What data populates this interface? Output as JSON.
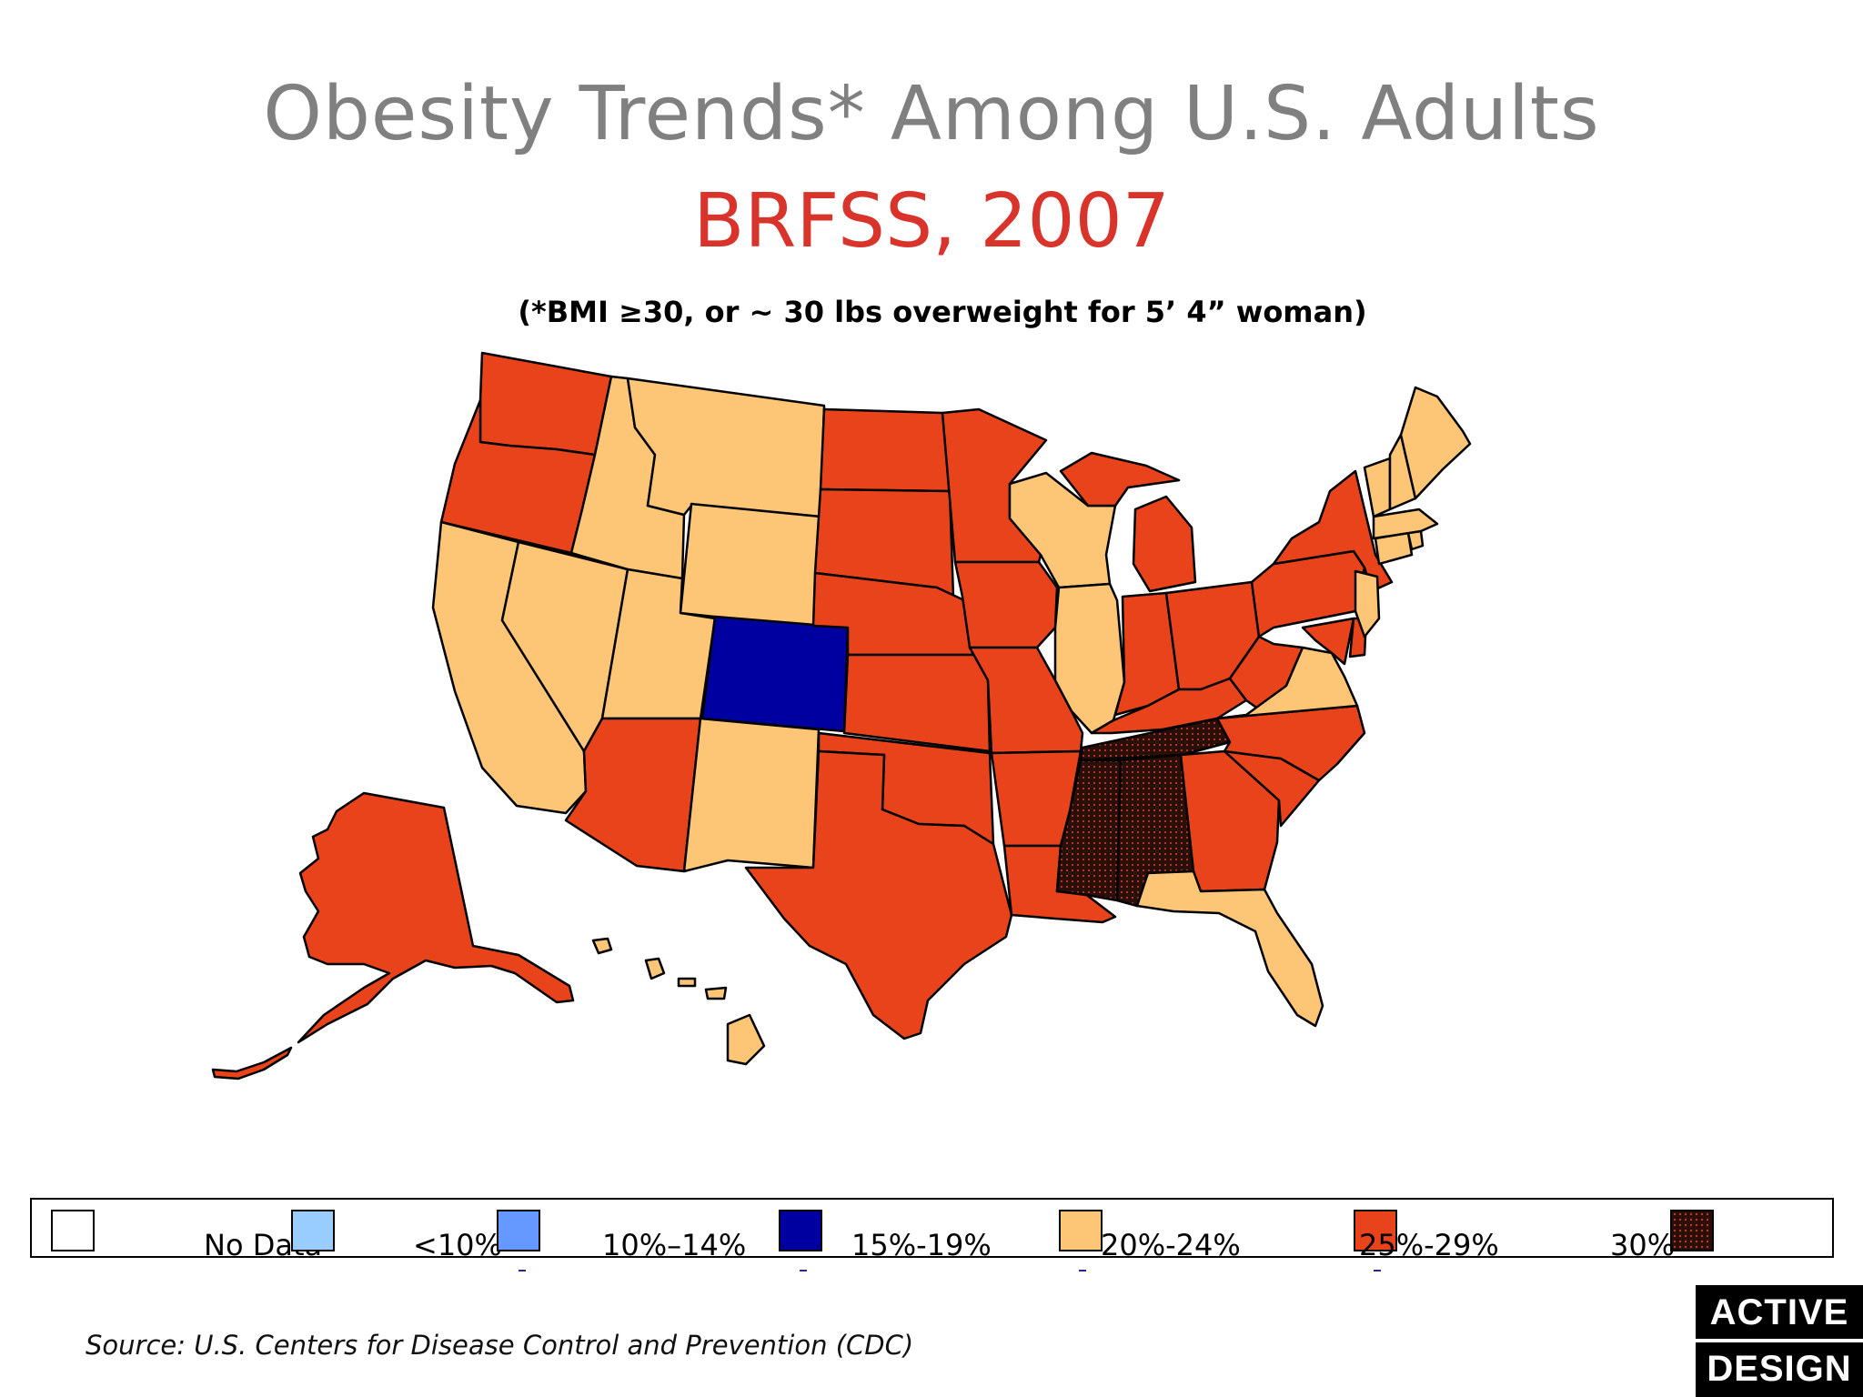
{
  "title": "Obesity Trends* Among U.S. Adults",
  "subtitle": "BRFSS, 2007",
  "note": "(*BMI ≥30, or ~ 30 lbs overweight for 5’ 4” woman)",
  "source": "Source: U.S. Centers for Disease Control and Prevention (CDC)",
  "logo": {
    "line1": "ACTIVE",
    "line2": "DESIGN"
  },
  "colors": {
    "no_data": "#ffffff",
    "lt10": "#99ccff",
    "10_14": "#6699ff",
    "15_19": "#0000a0",
    "20_24": "#fdc676",
    "25_29": "#e8431a",
    "30_plus": "#2a0e08",
    "title": "#808080",
    "subtitle": "#d9342b"
  },
  "legend": [
    {
      "label": "No Data",
      "color_key": "no_data"
    },
    {
      "label": "<10%",
      "color_key": "lt10"
    },
    {
      "label": "10%–14%",
      "color_key": "10_14"
    },
    {
      "label": "15%-19%",
      "color_key": "15_19"
    },
    {
      "label": "20%-24%",
      "color_key": "20_24"
    },
    {
      "label": "25%-29%",
      "color_key": "25_29"
    },
    {
      "label": "30%",
      "color_key": "30_plus"
    }
  ],
  "states": {
    "CO": "15_19",
    "WA": "25_29",
    "OR": "25_29",
    "AZ": "25_29",
    "ND": "25_29",
    "SD": "25_29",
    "NE": "25_29",
    "KS": "25_29",
    "OK": "25_29",
    "TX": "25_29",
    "MN": "25_29",
    "IA": "25_29",
    "MO": "25_29",
    "AR": "25_29",
    "LA": "25_29",
    "MI": "25_29",
    "IN": "25_29",
    "OH": "25_29",
    "KY": "25_29",
    "WV": "25_29",
    "PA": "25_29",
    "NY": "25_29",
    "NC": "25_29",
    "SC": "25_29",
    "GA": "25_29",
    "AK": "25_29",
    "MD": "25_29",
    "DE": "25_29",
    "CA": "20_24",
    "NV": "20_24",
    "ID": "20_24",
    "MT": "20_24",
    "WY": "20_24",
    "UT": "20_24",
    "NM": "20_24",
    "WI": "20_24",
    "IL": "20_24",
    "FL": "20_24",
    "VA": "20_24",
    "NJ": "20_24",
    "CT": "20_24",
    "MA": "20_24",
    "VT": "20_24",
    "NH": "20_24",
    "ME": "20_24",
    "RI": "20_24",
    "HI": "20_24",
    "TN": "30_plus",
    "MS": "30_plus",
    "AL": "30_plus"
  }
}
